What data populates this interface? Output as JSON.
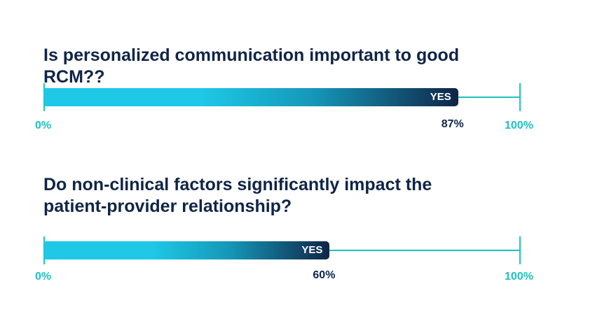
{
  "colors": {
    "teal": "#1fc2c2",
    "bar_start": "#1ec8e6",
    "bar_mid": "#1597b8",
    "bar_end": "#0f2547",
    "text_dark": "#0f2547"
  },
  "chart_data": [
    {
      "type": "bar",
      "orientation": "horizontal",
      "title": "Is personalized communication important to good RCM??",
      "categories": [
        "YES"
      ],
      "values": [
        87
      ],
      "value_labels": [
        "87%"
      ],
      "xlim": [
        0,
        100
      ],
      "tick_labels": [
        "0%",
        "100%"
      ]
    },
    {
      "type": "bar",
      "orientation": "horizontal",
      "title_lines": [
        "Do non-clinical factors significantly impact the",
        "patient-provider relationship?"
      ],
      "categories": [
        "YES"
      ],
      "values": [
        60
      ],
      "value_labels": [
        "60%"
      ],
      "xlim": [
        0,
        100
      ],
      "tick_labels": [
        "0%",
        "100%"
      ]
    }
  ]
}
